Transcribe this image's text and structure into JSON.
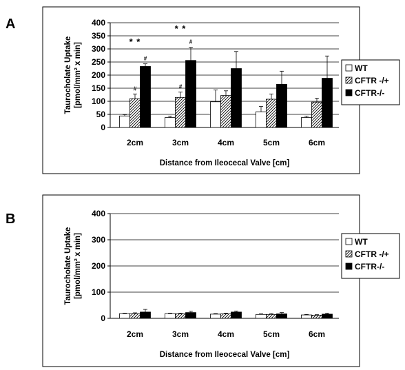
{
  "colors": {
    "WT": "#ffffff",
    "CFTR -/+": "hatched",
    "CFTR-/-": "#000000",
    "outline": "#000000",
    "grid": "#000000"
  },
  "chart_data": [
    {
      "panel": "A",
      "type": "bar",
      "xlabel": "Distance from Ileocecal Valve [cm]",
      "ylabel_line1": "Taurocholate Uptake",
      "ylabel_line2": "[pmol/mm² x min]",
      "ylim": [
        0,
        400
      ],
      "yticks": [
        0,
        50,
        100,
        150,
        200,
        250,
        300,
        350,
        400
      ],
      "grid": true,
      "legend_position": "right",
      "categories": [
        "2cm",
        "3cm",
        "4cm",
        "5cm",
        "6cm"
      ],
      "series": [
        {
          "name": "WT",
          "values": [
            44,
            38,
            98,
            60,
            38
          ],
          "errors": [
            5,
            5,
            45,
            20,
            5
          ]
        },
        {
          "name": "CFTR -/+",
          "values": [
            110,
            115,
            122,
            108,
            97
          ],
          "errors": [
            18,
            20,
            18,
            20,
            15
          ]
        },
        {
          "name": "CFTR-/-",
          "values": [
            233,
            256,
            225,
            165,
            188
          ],
          "errors": [
            10,
            50,
            65,
            50,
            85
          ]
        }
      ],
      "significance": [
        {
          "category": "2cm",
          "label": "* *"
        },
        {
          "category": "3cm",
          "label": "* *"
        }
      ],
      "hash_marks": [
        {
          "category": "2cm",
          "series": "CFTR -/+",
          "label": "#"
        },
        {
          "category": "2cm",
          "series": "CFTR-/-",
          "label": "#"
        },
        {
          "category": "3cm",
          "series": "CFTR -/+",
          "label": "#"
        },
        {
          "category": "3cm",
          "series": "CFTR-/-",
          "label": "#"
        }
      ]
    },
    {
      "panel": "B",
      "type": "bar",
      "xlabel": "Distance from Ileocecal Valve [cm]",
      "ylabel_line1": "Taurocholate Uptake",
      "ylabel_line2": "[pmol/mm² x min]",
      "ylim": [
        0,
        400
      ],
      "yticks": [
        0,
        100,
        200,
        300,
        400
      ],
      "grid": true,
      "legend_position": "right",
      "categories": [
        "2cm",
        "3cm",
        "4cm",
        "5cm",
        "6cm"
      ],
      "series": [
        {
          "name": "WT",
          "values": [
            18,
            18,
            16,
            15,
            13
          ],
          "errors": [
            2,
            2,
            2,
            2,
            2
          ]
        },
        {
          "name": "CFTR -/+",
          "values": [
            18,
            17,
            17,
            15,
            12
          ],
          "errors": [
            3,
            3,
            3,
            3,
            2
          ]
        },
        {
          "name": "CFTR-/-",
          "values": [
            24,
            22,
            24,
            17,
            16
          ],
          "errors": [
            10,
            5,
            4,
            5,
            4
          ]
        }
      ],
      "significance": [],
      "hash_marks": []
    }
  ]
}
